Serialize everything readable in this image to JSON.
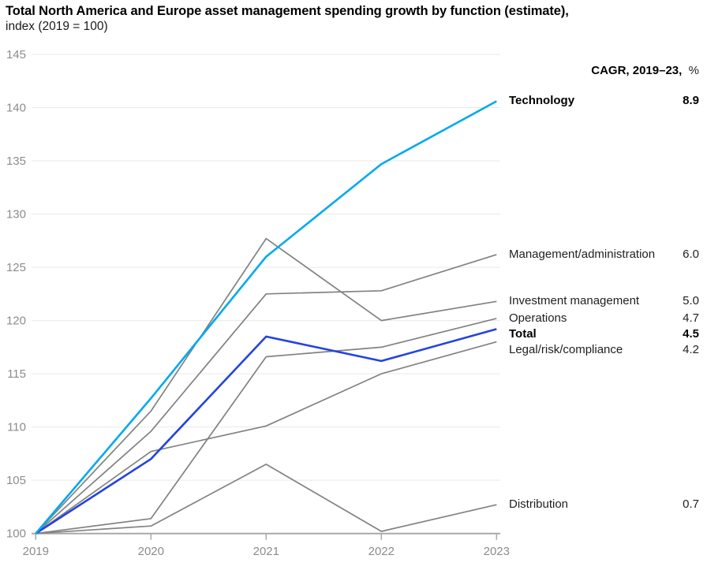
{
  "title": {
    "line1": "Total North America and Europe asset management spending growth by function (estimate),",
    "line2": "index (2019 = 100)"
  },
  "cagr_header": {
    "bold": "CAGR, 2019–23,",
    "regular": "%"
  },
  "chart_data": {
    "type": "line",
    "x": [
      2019,
      2020,
      2021,
      2022,
      2023
    ],
    "x_tick_labels": [
      "2019",
      "2020",
      "2021",
      "2022",
      "2023"
    ],
    "ylabel": "index (2019 = 100)",
    "ylim": [
      100,
      145
    ],
    "y_ticks": [
      100,
      105,
      110,
      115,
      120,
      125,
      130,
      135,
      140,
      145
    ],
    "grid": true,
    "legend_position": "right",
    "series": [
      {
        "name": "Technology",
        "values": [
          100,
          112.7,
          126.0,
          134.7,
          140.6
        ],
        "cagr": "8.9",
        "color": "#00a9f0",
        "bold": true
      },
      {
        "name": "Management/administration",
        "values": [
          100,
          109.6,
          122.5,
          122.8,
          126.2
        ],
        "cagr": "6.0",
        "color": "#828282",
        "bold": false
      },
      {
        "name": "Investment management",
        "values": [
          100,
          111.5,
          127.7,
          120.0,
          121.8
        ],
        "cagr": "5.0",
        "color": "#828282",
        "bold": false
      },
      {
        "name": "Operations",
        "values": [
          100,
          101.4,
          116.6,
          117.5,
          120.2
        ],
        "cagr": "4.7",
        "color": "#828282",
        "bold": false
      },
      {
        "name": "Total",
        "values": [
          100,
          107.0,
          118.5,
          116.2,
          119.2
        ],
        "cagr": "4.5",
        "color": "#2344df",
        "bold": true
      },
      {
        "name": "Legal/risk/compliance",
        "values": [
          100,
          107.7,
          110.1,
          115.0,
          118.0
        ],
        "cagr": "4.2",
        "color": "#828282",
        "bold": false
      },
      {
        "name": "Distribution",
        "values": [
          100,
          100.7,
          106.5,
          100.2,
          102.7
        ],
        "cagr": "0.7",
        "color": "#828282",
        "bold": false
      }
    ]
  },
  "colors": {
    "accent_cyan": "#00a9f0",
    "accent_blue": "#2344df",
    "line_gray": "#828282",
    "gridline": "#e9e9e9",
    "axis": "#a9a9a9",
    "tick_label": "#8c8c8c"
  }
}
